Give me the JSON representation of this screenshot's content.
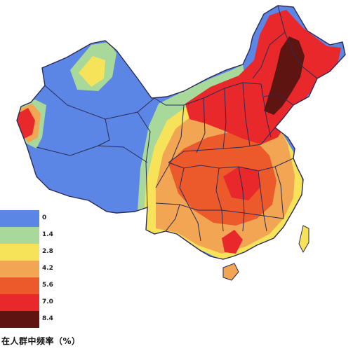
{
  "legend": {
    "caption": "在人群中频率（%）",
    "classes": [
      {
        "label": "0",
        "color": "#5b86e5"
      },
      {
        "label": "1.4",
        "color": "#a8d89a"
      },
      {
        "label": "2.8",
        "color": "#f6e35a"
      },
      {
        "label": "4.2",
        "color": "#f2a654"
      },
      {
        "label": "5.6",
        "color": "#ec5a2c"
      },
      {
        "label": "7.0",
        "color": "#e8282a"
      },
      {
        "label": "8.4",
        "color": "#5e1410"
      }
    ]
  }
}
